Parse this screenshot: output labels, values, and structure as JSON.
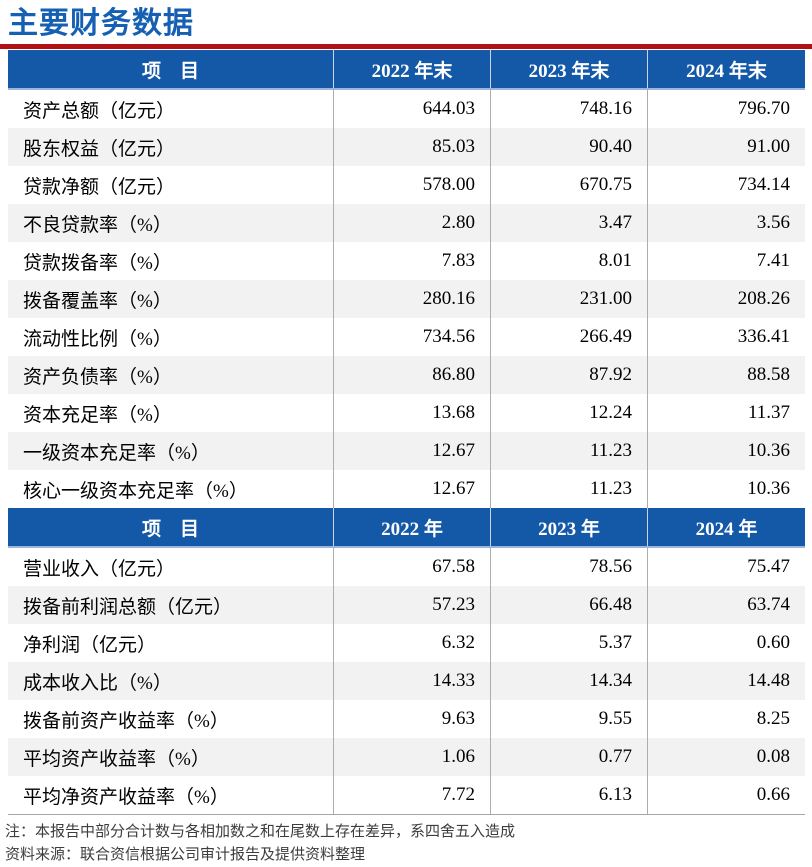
{
  "title": "主要财务数据",
  "colors": {
    "title_blue": "#1560B2",
    "header_blue": "#1458A8",
    "rule_red": "#B01114",
    "stripe_gray": "#F2F2F2"
  },
  "sections": [
    {
      "headers": [
        "项　目",
        "2022 年末",
        "2023 年末",
        "2024 年末"
      ],
      "rows": [
        {
          "label": "资产总额（亿元）",
          "values": [
            "644.03",
            "748.16",
            "796.70"
          ]
        },
        {
          "label": "股东权益（亿元）",
          "values": [
            "85.03",
            "90.40",
            "91.00"
          ]
        },
        {
          "label": "贷款净额（亿元）",
          "values": [
            "578.00",
            "670.75",
            "734.14"
          ]
        },
        {
          "label": "不良贷款率（%）",
          "values": [
            "2.80",
            "3.47",
            "3.56"
          ]
        },
        {
          "label": "贷款拨备率（%）",
          "values": [
            "7.83",
            "8.01",
            "7.41"
          ]
        },
        {
          "label": "拨备覆盖率（%）",
          "values": [
            "280.16",
            "231.00",
            "208.26"
          ]
        },
        {
          "label": "流动性比例（%）",
          "values": [
            "734.56",
            "266.49",
            "336.41"
          ]
        },
        {
          "label": "资产负债率（%）",
          "values": [
            "86.80",
            "87.92",
            "88.58"
          ]
        },
        {
          "label": "资本充足率（%）",
          "values": [
            "13.68",
            "12.24",
            "11.37"
          ]
        },
        {
          "label": "一级资本充足率（%）",
          "values": [
            "12.67",
            "11.23",
            "10.36"
          ]
        },
        {
          "label": "核心一级资本充足率（%）",
          "values": [
            "12.67",
            "11.23",
            "10.36"
          ]
        }
      ]
    },
    {
      "headers": [
        "项　目",
        "2022 年",
        "2023 年",
        "2024 年"
      ],
      "rows": [
        {
          "label": "营业收入（亿元）",
          "values": [
            "67.58",
            "78.56",
            "75.47"
          ]
        },
        {
          "label": "拨备前利润总额（亿元）",
          "values": [
            "57.23",
            "66.48",
            "63.74"
          ]
        },
        {
          "label": "净利润（亿元）",
          "values": [
            "6.32",
            "5.37",
            "0.60"
          ]
        },
        {
          "label": "成本收入比（%）",
          "values": [
            "14.33",
            "14.34",
            "14.48"
          ]
        },
        {
          "label": "拨备前资产收益率（%）",
          "values": [
            "9.63",
            "9.55",
            "8.25"
          ]
        },
        {
          "label": "平均资产收益率（%）",
          "values": [
            "1.06",
            "0.77",
            "0.08"
          ]
        },
        {
          "label": "平均净资产收益率（%）",
          "values": [
            "7.72",
            "6.13",
            "0.66"
          ]
        }
      ]
    }
  ],
  "notes": [
    "注：本报告中部分合计数与各相加数之和在尾数上存在差异，系四舍五入造成",
    "资料来源：联合资信根据公司审计报告及提供资料整理"
  ]
}
